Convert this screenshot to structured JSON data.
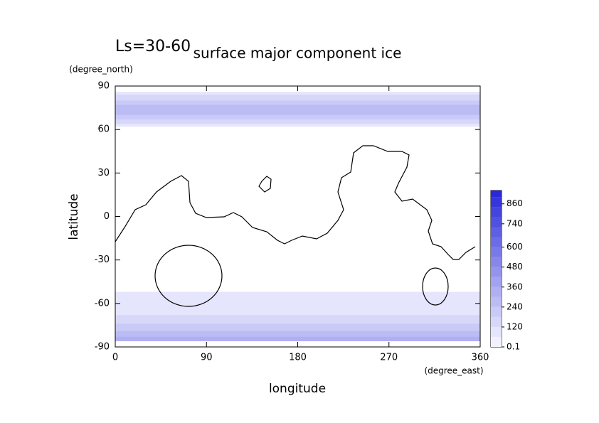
{
  "chart_data": {
    "type": "contour-map",
    "title": "surface major component ice",
    "subtitle": "Ls=30-60",
    "x_label": "longitude",
    "x_unit": "(degree_east)",
    "y_label": "latitude",
    "y_unit": "(degree_north)",
    "xlim": [
      0,
      360
    ],
    "xticks": [
      0,
      90,
      180,
      270,
      360
    ],
    "ylim": [
      -90,
      90
    ],
    "yticks": [
      -90,
      -60,
      -30,
      0,
      30,
      60,
      90
    ],
    "clim": [
      0.1,
      940
    ],
    "cticks": [
      0.1,
      120,
      240,
      360,
      480,
      600,
      740,
      860
    ],
    "levels": [
      0.1,
      60,
      120,
      180,
      240,
      300,
      360,
      420,
      480,
      540,
      600,
      660,
      720,
      780,
      840,
      900
    ],
    "colormap": [
      "#f2f2ff",
      "#2020d8"
    ],
    "fields": [
      {
        "lat": [
          62,
          86
        ],
        "value": 60
      },
      {
        "lat": [
          64,
          84
        ],
        "value": 120
      },
      {
        "lat": [
          67,
          80
        ],
        "value": 180
      },
      {
        "lat": [
          70,
          77
        ],
        "value": 240
      },
      {
        "lat": [
          -86,
          -52
        ],
        "value": 60
      },
      {
        "lat": [
          -86,
          -68
        ],
        "value": 120
      },
      {
        "lat": [
          -86,
          -74
        ],
        "value": 180
      },
      {
        "lat": [
          -86,
          -79
        ],
        "value": 240
      },
      {
        "lat": [
          -86,
          -83
        ],
        "value": 300
      }
    ]
  }
}
